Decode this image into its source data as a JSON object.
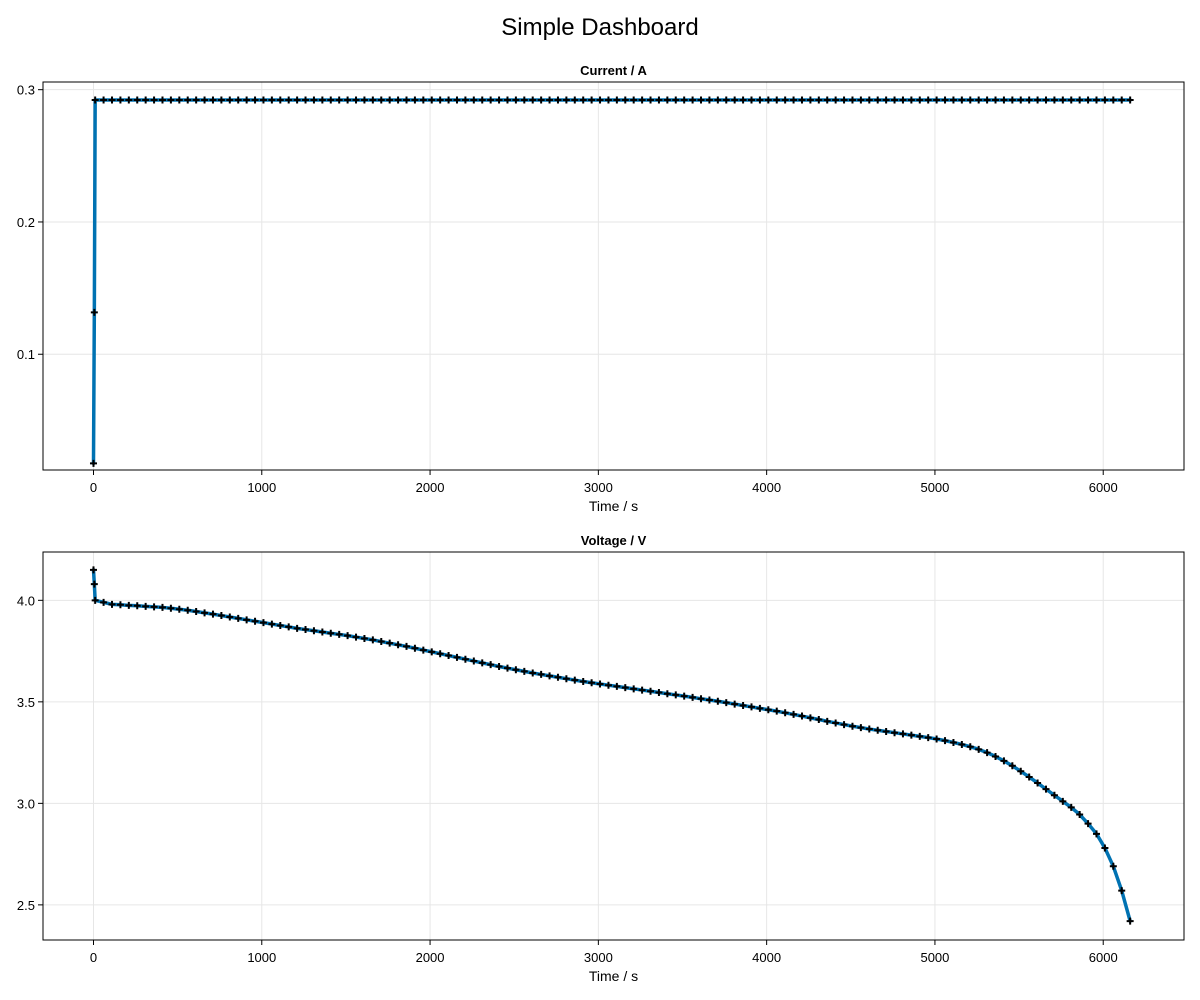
{
  "title": "Simple Dashboard",
  "colors": {
    "line": "#0072b2",
    "marker": "#000000",
    "grid": "#e6e6e6",
    "frame": "#000000"
  },
  "chart_data": [
    {
      "type": "line",
      "title": "Current  /  A",
      "xlabel": "Time  /  s",
      "ylabel": "",
      "xlim": [
        -300,
        6480
      ],
      "ylim": [
        0.0125,
        0.3058
      ],
      "xticks": [
        0,
        1000,
        2000,
        3000,
        4000,
        5000,
        6000
      ],
      "xtick_labels": [
        "0",
        "1000",
        "2000",
        "3000",
        "4000",
        "5000",
        "6000"
      ],
      "yticks": [
        0.1,
        0.2,
        0.3
      ],
      "ytick_labels": [
        "0.1",
        "0.2",
        "0.3"
      ],
      "grid": true,
      "series": [
        {
          "marker": "plus",
          "x": [
            0,
            5,
            10,
            60,
            110,
            160,
            210,
            260,
            310,
            360,
            410,
            460,
            510,
            560,
            610,
            660,
            710,
            760,
            810,
            860,
            910,
            960,
            1010,
            1060,
            1110,
            1160,
            1210,
            1260,
            1310,
            1360,
            1410,
            1460,
            1510,
            1560,
            1610,
            1660,
            1710,
            1760,
            1810,
            1860,
            1910,
            1960,
            2010,
            2060,
            2110,
            2160,
            2210,
            2260,
            2310,
            2360,
            2410,
            2460,
            2510,
            2560,
            2610,
            2660,
            2710,
            2760,
            2810,
            2860,
            2910,
            2960,
            3010,
            3060,
            3110,
            3160,
            3210,
            3260,
            3310,
            3360,
            3410,
            3460,
            3510,
            3560,
            3610,
            3660,
            3710,
            3760,
            3810,
            3860,
            3910,
            3960,
            4010,
            4060,
            4110,
            4160,
            4210,
            4260,
            4310,
            4360,
            4410,
            4460,
            4510,
            4560,
            4610,
            4660,
            4710,
            4760,
            4810,
            4860,
            4910,
            4960,
            5010,
            5060,
            5110,
            5160,
            5210,
            5260,
            5310,
            5360,
            5410,
            5460,
            5510,
            5560,
            5610,
            5660,
            5710,
            5760,
            5810,
            5860,
            5910,
            5960,
            6010,
            6060,
            6110,
            6160
          ],
          "y": [
            0.0175,
            0.1317,
            0.2922,
            0.2922,
            0.2922,
            0.2922,
            0.2922,
            0.2922,
            0.2922,
            0.2922,
            0.2922,
            0.2922,
            0.2922,
            0.2922,
            0.2922,
            0.2922,
            0.2922,
            0.2922,
            0.2922,
            0.2922,
            0.2922,
            0.2922,
            0.2922,
            0.2922,
            0.2922,
            0.2922,
            0.2922,
            0.2922,
            0.2922,
            0.2922,
            0.2922,
            0.2922,
            0.2922,
            0.2922,
            0.2922,
            0.2922,
            0.2922,
            0.2922,
            0.2922,
            0.2922,
            0.2922,
            0.2922,
            0.2922,
            0.2922,
            0.2922,
            0.2922,
            0.2922,
            0.2922,
            0.2922,
            0.2922,
            0.2922,
            0.2922,
            0.2922,
            0.2922,
            0.2922,
            0.2922,
            0.2922,
            0.2922,
            0.2922,
            0.2922,
            0.2922,
            0.2922,
            0.2922,
            0.2922,
            0.2922,
            0.2922,
            0.2922,
            0.2922,
            0.2922,
            0.2922,
            0.2922,
            0.2922,
            0.2922,
            0.2922,
            0.2922,
            0.2922,
            0.2922,
            0.2922,
            0.2922,
            0.2922,
            0.2922,
            0.2922,
            0.2922,
            0.2922,
            0.2922,
            0.2922,
            0.2922,
            0.2922,
            0.2922,
            0.2922,
            0.2922,
            0.2922,
            0.2922,
            0.2922,
            0.2922,
            0.2922,
            0.2922,
            0.2922,
            0.2922,
            0.2922,
            0.2922,
            0.2922,
            0.2922,
            0.2922,
            0.2922,
            0.2922,
            0.2922,
            0.2922,
            0.2922,
            0.2922,
            0.2922,
            0.2922,
            0.2922,
            0.2922,
            0.2922,
            0.2922,
            0.2922,
            0.2922,
            0.2922,
            0.2922,
            0.2922,
            0.2922,
            0.2922,
            0.2922,
            0.2922,
            0.2922
          ]
        }
      ]
    },
    {
      "type": "line",
      "title": "Voltage  /  V",
      "xlabel": "Time  /  s",
      "ylabel": "",
      "xlim": [
        -300,
        6480
      ],
      "ylim": [
        2.327,
        4.238
      ],
      "xticks": [
        0,
        1000,
        2000,
        3000,
        4000,
        5000,
        6000
      ],
      "xtick_labels": [
        "0",
        "1000",
        "2000",
        "3000",
        "4000",
        "5000",
        "6000"
      ],
      "yticks": [
        2.5,
        3.0,
        3.5,
        4.0
      ],
      "ytick_labels": [
        "2.5",
        "3.0",
        "3.5",
        "4.0"
      ],
      "grid": true,
      "series": [
        {
          "marker": "plus",
          "x": [
            0,
            5,
            10,
            60,
            110,
            160,
            210,
            260,
            310,
            360,
            410,
            460,
            510,
            560,
            610,
            660,
            710,
            760,
            810,
            860,
            910,
            960,
            1010,
            1060,
            1110,
            1160,
            1210,
            1260,
            1310,
            1360,
            1410,
            1460,
            1510,
            1560,
            1610,
            1660,
            1710,
            1760,
            1810,
            1860,
            1910,
            1960,
            2010,
            2060,
            2110,
            2160,
            2210,
            2260,
            2310,
            2360,
            2410,
            2460,
            2510,
            2560,
            2610,
            2660,
            2710,
            2760,
            2810,
            2860,
            2910,
            2960,
            3010,
            3060,
            3110,
            3160,
            3210,
            3260,
            3310,
            3360,
            3410,
            3460,
            3510,
            3560,
            3610,
            3660,
            3710,
            3760,
            3810,
            3860,
            3910,
            3960,
            4010,
            4060,
            4110,
            4160,
            4210,
            4260,
            4310,
            4360,
            4410,
            4460,
            4510,
            4560,
            4610,
            4660,
            4710,
            4760,
            4810,
            4860,
            4910,
            4960,
            5010,
            5060,
            5110,
            5160,
            5210,
            5260,
            5310,
            5360,
            5410,
            5460,
            5510,
            5560,
            5610,
            5660,
            5710,
            5760,
            5810,
            5860,
            5910,
            5960,
            6010,
            6060,
            6110,
            6160
          ],
          "y": [
            4.15,
            4.08,
            4.0,
            3.99,
            3.98,
            3.978,
            3.975,
            3.973,
            3.97,
            3.968,
            3.965,
            3.961,
            3.956,
            3.951,
            3.945,
            3.938,
            3.932,
            3.925,
            3.918,
            3.911,
            3.904,
            3.897,
            3.89,
            3.883,
            3.876,
            3.869,
            3.862,
            3.856,
            3.85,
            3.844,
            3.838,
            3.832,
            3.826,
            3.819,
            3.812,
            3.805,
            3.797,
            3.789,
            3.781,
            3.773,
            3.764,
            3.755,
            3.746,
            3.737,
            3.728,
            3.719,
            3.71,
            3.701,
            3.692,
            3.683,
            3.674,
            3.666,
            3.658,
            3.65,
            3.642,
            3.635,
            3.628,
            3.621,
            3.614,
            3.607,
            3.6,
            3.594,
            3.588,
            3.582,
            3.576,
            3.57,
            3.564,
            3.558,
            3.552,
            3.546,
            3.54,
            3.534,
            3.528,
            3.522,
            3.515,
            3.509,
            3.503,
            3.496,
            3.489,
            3.482,
            3.475,
            3.468,
            3.461,
            3.454,
            3.446,
            3.438,
            3.43,
            3.421,
            3.413,
            3.404,
            3.396,
            3.388,
            3.38,
            3.373,
            3.366,
            3.36,
            3.354,
            3.348,
            3.342,
            3.336,
            3.33,
            3.324,
            3.317,
            3.309,
            3.3,
            3.29,
            3.279,
            3.266,
            3.25,
            3.231,
            3.209,
            3.185,
            3.158,
            3.13,
            3.1,
            3.07,
            3.04,
            3.01,
            2.98,
            2.945,
            2.9,
            2.85,
            2.78,
            2.69,
            2.57,
            2.42
          ]
        }
      ]
    }
  ]
}
